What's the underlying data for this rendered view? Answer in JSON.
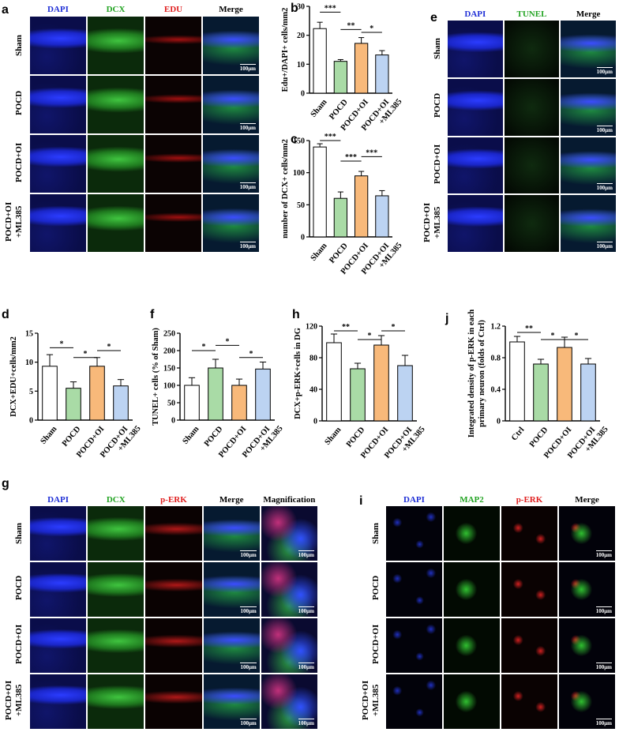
{
  "colors": {
    "blue": "#1f2fd6",
    "green": "#22a322",
    "red": "#e02020",
    "white": "#000000",
    "sham_fill": "#ffffff",
    "pocd_fill": "#a9dba6",
    "oi_fill": "#f8b97a",
    "ml_fill": "#bcd3f2"
  },
  "panels": {
    "a": {
      "label": "a",
      "headers": [
        "DAPI",
        "DCX",
        "EDU",
        "Merge"
      ],
      "rows": [
        "Sham",
        "POCD",
        "POCD+OI",
        "POCD+OI\n+ML385"
      ],
      "scale": "100μm"
    },
    "e": {
      "label": "e",
      "headers": [
        "DAPI",
        "TUNEL",
        "Merge"
      ],
      "rows": [
        "Sham",
        "POCD",
        "POCD+OI",
        "POCD+OI\n+ML385"
      ],
      "scale": "100μm"
    },
    "g": {
      "label": "g",
      "headers": [
        "DAPI",
        "DCX",
        "p-ERK",
        "Merge",
        "Magnification"
      ],
      "rows": [
        "Sham",
        "POCD",
        "POCD+OI",
        "POCD+OI\n+ML385"
      ],
      "scale": "100μm"
    },
    "i": {
      "label": "i",
      "headers": [
        "DAPI",
        "MAP2",
        "p-ERK",
        "Merge"
      ],
      "rows": [
        "Sham",
        "POCD",
        "POCD+OI",
        "POCD+OI\n+ML385"
      ],
      "scale": "100μm"
    }
  },
  "chart_data": [
    {
      "id": "b",
      "type": "bar",
      "categories": [
        "Sham",
        "POCD",
        "POCD+OI",
        "POCD+OI\n+ML385"
      ],
      "values": [
        22.3,
        11,
        17.2,
        13.2
      ],
      "errors": [
        2.2,
        0.6,
        2.0,
        1.5
      ],
      "ylim": [
        0,
        30
      ],
      "yticks": [
        0,
        10,
        20,
        30
      ],
      "ylabel": "Edu+/DAPI+ cells/mm2",
      "sig": [
        {
          "from": 0,
          "to": 1,
          "text": "***",
          "y": 28
        },
        {
          "from": 1,
          "to": 2,
          "text": "**",
          "y": 22
        },
        {
          "from": 2,
          "to": 3,
          "text": "*",
          "y": 21
        }
      ]
    },
    {
      "id": "c",
      "type": "bar",
      "categories": [
        "Sham",
        "POCD",
        "POCD+OI",
        "POCD+OI\n+ML385"
      ],
      "values": [
        140,
        60,
        95,
        64
      ],
      "errors": [
        5,
        10,
        7,
        8
      ],
      "ylim": [
        0,
        150
      ],
      "yticks": [
        0,
        50,
        100,
        150
      ],
      "ylabel": "number of DCX+ cells/mm2",
      "sig": [
        {
          "from": 0,
          "to": 1,
          "text": "***",
          "y": 150
        },
        {
          "from": 1,
          "to": 2,
          "text": "***",
          "y": 118
        },
        {
          "from": 2,
          "to": 3,
          "text": "***",
          "y": 125
        }
      ]
    },
    {
      "id": "d",
      "type": "bar",
      "categories": [
        "Sham",
        "POCD",
        "POCD+OI",
        "POCD+OI\n+ML385"
      ],
      "values": [
        9.3,
        5.5,
        9.3,
        5.9
      ],
      "errors": [
        2.0,
        1.1,
        1.5,
        1.1
      ],
      "ylim": [
        0,
        15
      ],
      "yticks": [
        0,
        5,
        10,
        15
      ],
      "ylabel": "DCX+EDU+cells/mm2",
      "sig": [
        {
          "from": 0,
          "to": 1,
          "text": "*",
          "y": 12.5
        },
        {
          "from": 1,
          "to": 2,
          "text": "*",
          "y": 10.8
        },
        {
          "from": 2,
          "to": 3,
          "text": "*",
          "y": 12.0
        }
      ]
    },
    {
      "id": "f",
      "type": "bar",
      "categories": [
        "Sham",
        "POCD",
        "POCD+OI",
        "POCD+OI\n+ML385"
      ],
      "values": [
        100,
        150,
        100,
        147
      ],
      "errors": [
        22,
        25,
        18,
        20
      ],
      "ylim": [
        0,
        250
      ],
      "yticks": [
        0,
        50,
        100,
        150,
        200,
        250
      ],
      "ylabel": "TUNEL+ cells (% of Sham)",
      "sig": [
        {
          "from": 0,
          "to": 1,
          "text": "*",
          "y": 200
        },
        {
          "from": 1,
          "to": 2,
          "text": "*",
          "y": 215
        },
        {
          "from": 2,
          "to": 3,
          "text": "*",
          "y": 180
        }
      ]
    },
    {
      "id": "h",
      "type": "bar",
      "categories": [
        "Sham",
        "POCD",
        "POCD+OI",
        "POCD+OI\n+ML385"
      ],
      "values": [
        99,
        66,
        96,
        70
      ],
      "errors": [
        11,
        7,
        12,
        13
      ],
      "ylim": [
        0,
        120
      ],
      "yticks": [
        0,
        40,
        80,
        120
      ],
      "ylabel": "DCX+p-ERK+cells in DG",
      "sig": [
        {
          "from": 0,
          "to": 1,
          "text": "**",
          "y": 114
        },
        {
          "from": 1,
          "to": 2,
          "text": "*",
          "y": 103
        },
        {
          "from": 2,
          "to": 3,
          "text": "*",
          "y": 114
        }
      ]
    },
    {
      "id": "j",
      "type": "bar",
      "categories": [
        "Ctrl",
        "POCD",
        "POCD+OI",
        "POCD+OI\n+ML385"
      ],
      "values": [
        1.0,
        0.72,
        0.93,
        0.72
      ],
      "errors": [
        0.07,
        0.06,
        0.13,
        0.07
      ],
      "ylim": [
        0,
        1.2
      ],
      "yticks": [
        0,
        0.4,
        0.8,
        1.2
      ],
      "ylabel": "Integrated density of p-ERK in each primary neuron (folds of Ctrl)",
      "sig": [
        {
          "from": 0,
          "to": 1,
          "text": "**",
          "y": 1.12
        },
        {
          "from": 1,
          "to": 2,
          "text": "*",
          "y": 1.03
        },
        {
          "from": 2,
          "to": 3,
          "text": "*",
          "y": 1.03
        }
      ]
    }
  ]
}
